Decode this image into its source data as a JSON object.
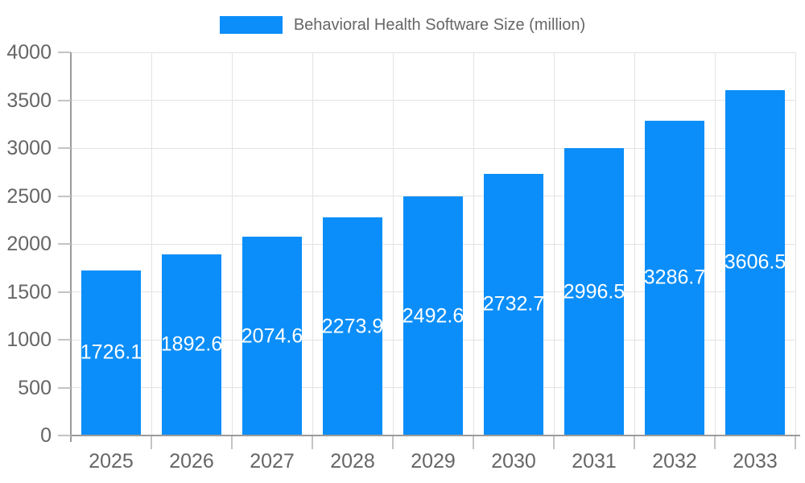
{
  "chart_data": {
    "type": "bar",
    "title": "Behavioral Health Software Size (million)",
    "legend": [
      "Behavioral Health Software Size (million)"
    ],
    "legend_position": "top",
    "categories": [
      "2025",
      "2026",
      "2027",
      "2028",
      "2029",
      "2030",
      "2031",
      "2032",
      "2033"
    ],
    "series": [
      {
        "name": "Behavioral Health Software Size (million)",
        "values": [
          1726.1,
          1892.6,
          2074.6,
          2273.9,
          2492.6,
          2732.7,
          2996.5,
          3286.7,
          3606.5
        ]
      }
    ],
    "value_labels": [
      "1726.1",
      "1892.6",
      "2074.6",
      "2273.9",
      "2492.6",
      "2732.7",
      "2996.5",
      "3286.7",
      "3606.5"
    ],
    "xlabel": "",
    "ylabel": "",
    "ylim": [
      0,
      4000
    ],
    "yticks": [
      0,
      500,
      1000,
      1500,
      2000,
      2500,
      3000,
      3500,
      4000
    ],
    "grid": true,
    "colors": {
      "bar": "#0b8ef9",
      "gridline": "#e3e3e3",
      "tick": "#c4c4c4",
      "axis_line": "#9a9a9a",
      "axis_text": "#666666",
      "legend_text": "#666666",
      "value_label": "#ffffff",
      "background": "#ffffff"
    }
  }
}
